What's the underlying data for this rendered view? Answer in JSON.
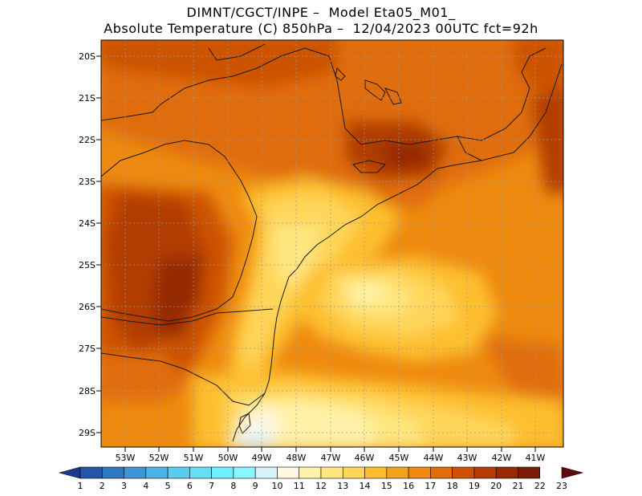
{
  "header": {
    "line1": "DIMNT/CGCT/INPE –  Model Eta05_M01_",
    "line2": "Absolute Temperature (C) 850hPa –  12/04/2023 00UTC fct=92h"
  },
  "map": {
    "lat_labels": [
      "20S",
      "21S",
      "22S",
      "23S",
      "24S",
      "25S",
      "26S",
      "27S",
      "28S",
      "29S"
    ],
    "lon_labels": [
      "53W",
      "52W",
      "51W",
      "50W",
      "49W",
      "48W",
      "47W",
      "46W",
      "45W",
      "44W",
      "43W",
      "42W",
      "41W"
    ]
  },
  "colorbar": {
    "labels": [
      "1",
      "2",
      "3",
      "4",
      "5",
      "6",
      "7",
      "8",
      "9",
      "10",
      "11",
      "12",
      "13",
      "14",
      "15",
      "16",
      "17",
      "18",
      "19",
      "20",
      "21",
      "22",
      "23"
    ],
    "colors": [
      "#1f3a93",
      "#2456a8",
      "#2e78c2",
      "#3f95d4",
      "#4db3e6",
      "#5ccbef",
      "#66dff5",
      "#6fefff",
      "#8af6ff",
      "#d6f3fb",
      "#fff7e0",
      "#fff2a8",
      "#ffe680",
      "#ffd65a",
      "#fdbf2d",
      "#f2a31c",
      "#ee8a10",
      "#e06d0a",
      "#cc5306",
      "#b23c04",
      "#952a04",
      "#7c1c06",
      "#5e0a0a"
    ]
  }
}
